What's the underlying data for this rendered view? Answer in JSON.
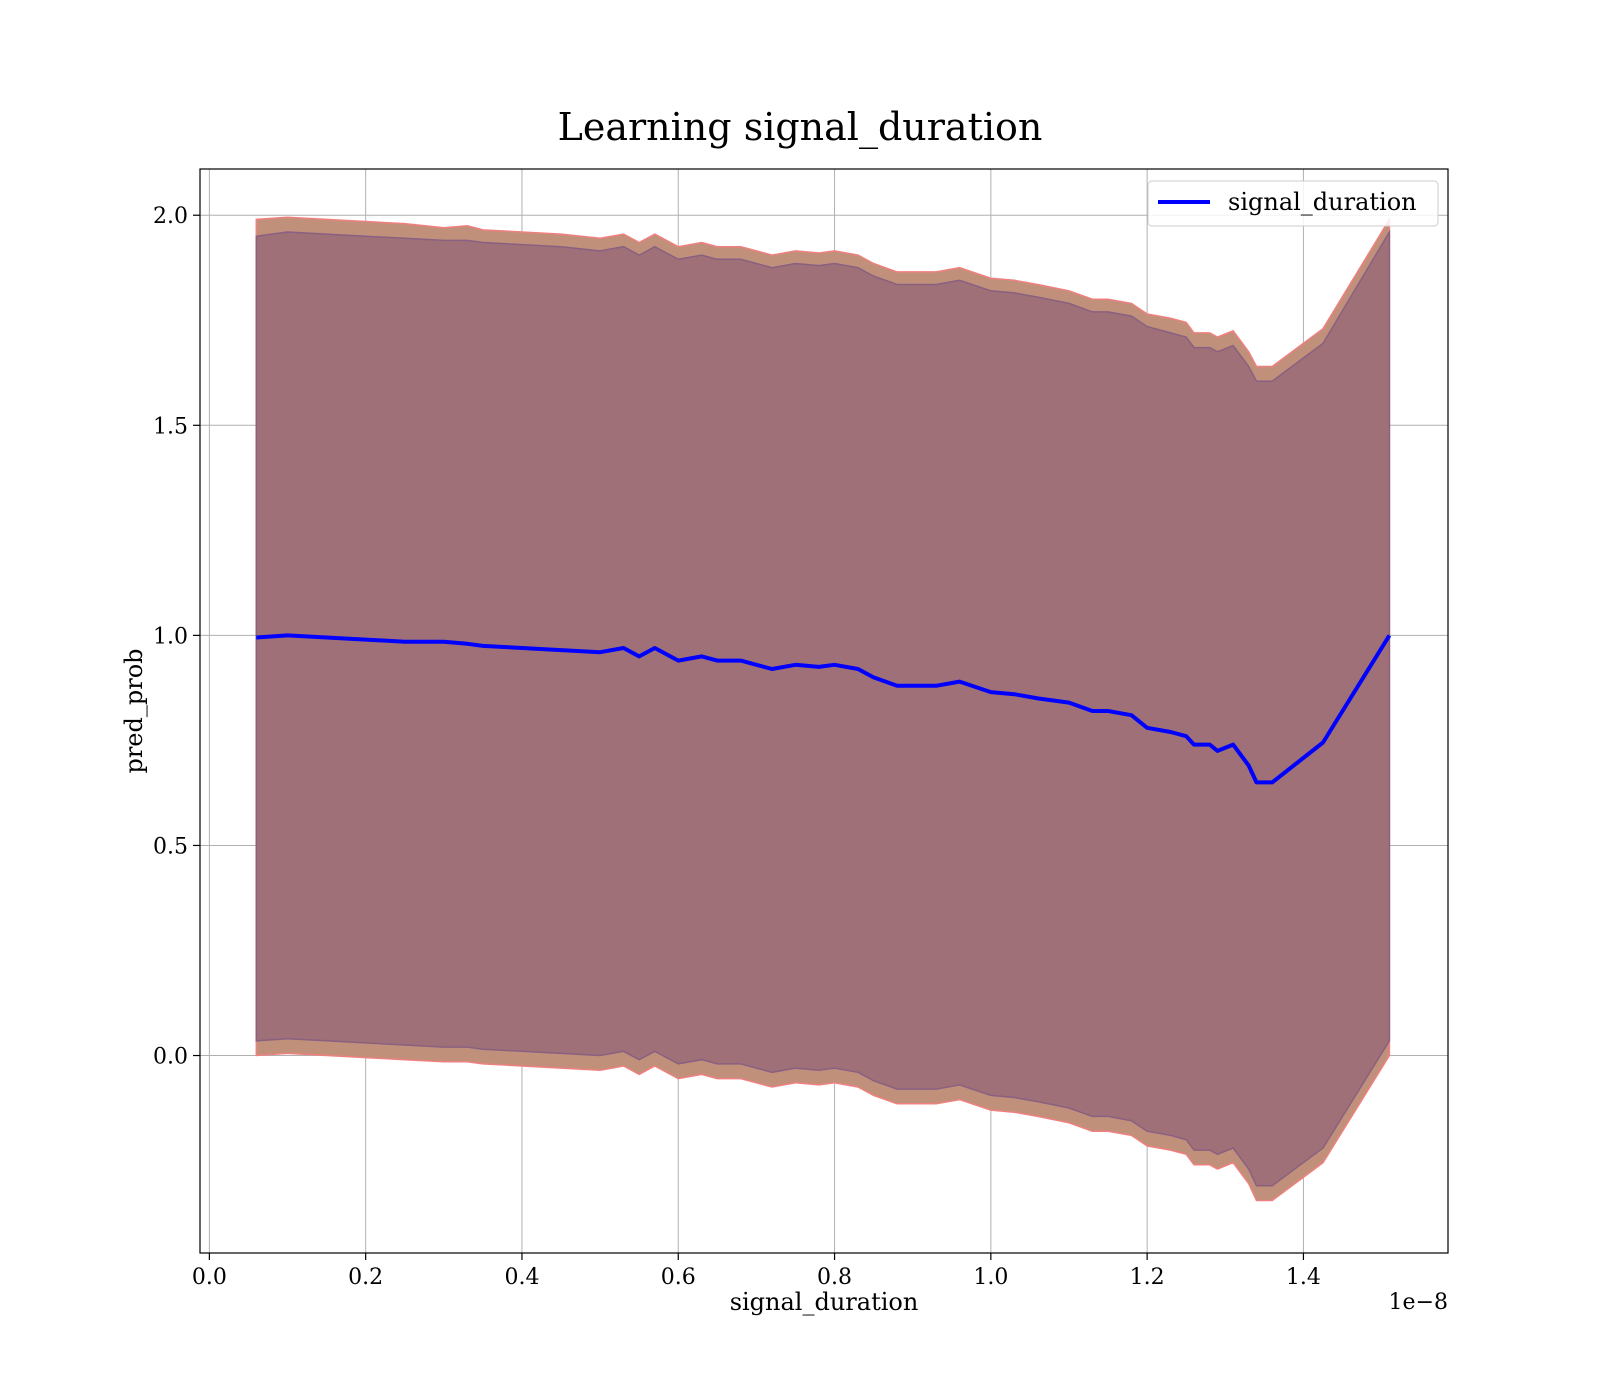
{
  "chart_data": {
    "type": "line",
    "title": "Learning signal_duration",
    "xlabel": "signal_duration",
    "ylabel": "pred_prob",
    "x_offset_label": "1e−8",
    "xlim": [
      -0.012,
      1.585
    ],
    "ylim": [
      -0.47,
      2.11
    ],
    "x_ticks": [
      0.0,
      0.2,
      0.4,
      0.6,
      0.8,
      1.0,
      1.2,
      1.4
    ],
    "x_tick_labels": [
      "0.0",
      "0.2",
      "0.4",
      "0.6",
      "0.8",
      "1.0",
      "1.2",
      "1.4"
    ],
    "y_ticks": [
      0.0,
      0.5,
      1.0,
      1.5,
      2.0
    ],
    "y_tick_labels": [
      "0.0",
      "0.5",
      "1.0",
      "1.5",
      "2.0"
    ],
    "grid": true,
    "legend_position": "top-right",
    "series": [
      {
        "name": "signal_duration",
        "color": "#0000ff",
        "x": [
          0.06,
          0.1,
          0.15,
          0.2,
          0.25,
          0.3,
          0.33,
          0.35,
          0.4,
          0.45,
          0.5,
          0.53,
          0.55,
          0.57,
          0.6,
          0.63,
          0.65,
          0.68,
          0.7,
          0.72,
          0.75,
          0.78,
          0.8,
          0.83,
          0.85,
          0.88,
          0.9,
          0.93,
          0.96,
          1.0,
          1.03,
          1.06,
          1.1,
          1.13,
          1.15,
          1.18,
          1.2,
          1.23,
          1.25,
          1.26,
          1.28,
          1.29,
          1.31,
          1.33,
          1.34,
          1.36,
          1.425,
          1.51
        ],
        "y": [
          0.995,
          1.0,
          0.995,
          0.99,
          0.985,
          0.985,
          0.98,
          0.975,
          0.97,
          0.965,
          0.96,
          0.97,
          0.95,
          0.97,
          0.94,
          0.95,
          0.94,
          0.94,
          0.93,
          0.92,
          0.93,
          0.925,
          0.93,
          0.92,
          0.9,
          0.88,
          0.88,
          0.88,
          0.89,
          0.865,
          0.86,
          0.85,
          0.84,
          0.82,
          0.82,
          0.81,
          0.78,
          0.77,
          0.76,
          0.74,
          0.74,
          0.725,
          0.74,
          0.69,
          0.65,
          0.65,
          0.745,
          1.0
        ]
      }
    ],
    "bands": [
      {
        "color": "#c0907b",
        "edge_color": "#f08080",
        "upper": [
          1.99,
          1.995,
          1.99,
          1.985,
          1.98,
          1.97,
          1.975,
          1.965,
          1.96,
          1.955,
          1.945,
          1.955,
          1.935,
          1.955,
          1.925,
          1.935,
          1.925,
          1.925,
          1.915,
          1.905,
          1.915,
          1.91,
          1.915,
          1.905,
          1.885,
          1.865,
          1.865,
          1.865,
          1.875,
          1.85,
          1.845,
          1.835,
          1.82,
          1.8,
          1.8,
          1.79,
          1.765,
          1.755,
          1.745,
          1.72,
          1.72,
          1.71,
          1.725,
          1.675,
          1.64,
          1.64,
          1.73,
          1.99
        ],
        "lower": [
          0.0,
          0.005,
          0.0,
          -0.005,
          -0.01,
          -0.015,
          -0.015,
          -0.02,
          -0.025,
          -0.03,
          -0.035,
          -0.025,
          -0.045,
          -0.025,
          -0.055,
          -0.045,
          -0.055,
          -0.055,
          -0.065,
          -0.075,
          -0.065,
          -0.07,
          -0.065,
          -0.075,
          -0.095,
          -0.115,
          -0.115,
          -0.115,
          -0.105,
          -0.13,
          -0.135,
          -0.145,
          -0.16,
          -0.18,
          -0.18,
          -0.19,
          -0.215,
          -0.225,
          -0.235,
          -0.26,
          -0.26,
          -0.27,
          -0.255,
          -0.305,
          -0.345,
          -0.345,
          -0.255,
          0.0
        ]
      },
      {
        "color": "#a07078",
        "edge_color": "#8a6080",
        "upper": [
          1.95,
          1.96,
          1.955,
          1.95,
          1.945,
          1.94,
          1.94,
          1.935,
          1.93,
          1.925,
          1.915,
          1.925,
          1.905,
          1.925,
          1.895,
          1.905,
          1.895,
          1.895,
          1.885,
          1.875,
          1.885,
          1.88,
          1.885,
          1.875,
          1.855,
          1.835,
          1.835,
          1.835,
          1.845,
          1.82,
          1.815,
          1.805,
          1.79,
          1.77,
          1.77,
          1.76,
          1.735,
          1.72,
          1.71,
          1.685,
          1.685,
          1.675,
          1.69,
          1.64,
          1.605,
          1.605,
          1.695,
          1.96
        ],
        "lower": [
          0.035,
          0.04,
          0.035,
          0.03,
          0.025,
          0.02,
          0.02,
          0.015,
          0.01,
          0.005,
          0.0,
          0.01,
          -0.01,
          0.01,
          -0.02,
          -0.01,
          -0.02,
          -0.02,
          -0.03,
          -0.04,
          -0.03,
          -0.035,
          -0.03,
          -0.04,
          -0.06,
          -0.08,
          -0.08,
          -0.08,
          -0.07,
          -0.095,
          -0.1,
          -0.11,
          -0.125,
          -0.145,
          -0.145,
          -0.155,
          -0.18,
          -0.19,
          -0.2,
          -0.225,
          -0.225,
          -0.235,
          -0.22,
          -0.27,
          -0.31,
          -0.31,
          -0.22,
          0.035
        ]
      }
    ]
  }
}
